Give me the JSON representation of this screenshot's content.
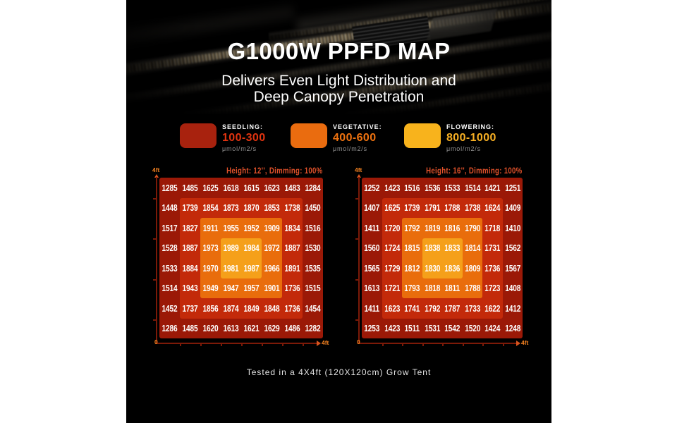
{
  "title": "G1000W PPFD MAP",
  "subtitle_line1": "Delivers Even Light Distribution and",
  "subtitle_line2": "Deep Canopy Penetration",
  "legend": {
    "items": [
      {
        "label": "SEEDLING:",
        "range": "100-300",
        "unit": "μmol/m2/s",
        "swatch": "#a8220e",
        "range_color": "#e23410"
      },
      {
        "label": "VEGETATIVE:",
        "range": "400-600",
        "unit": "μmol/m2/s",
        "swatch": "#ea6c0f",
        "range_color": "#f07310"
      },
      {
        "label": "FLOWERING:",
        "range": "800-1000",
        "unit": "μmol/m2/s",
        "swatch": "#f8b31c",
        "range_color": "#f8b024"
      }
    ]
  },
  "heat_colors": {
    "rings": [
      "#9b1907",
      "#c32a0a",
      "#e96d0c",
      "#f5a01a"
    ]
  },
  "chart_data": [
    {
      "type": "heatmap",
      "title": "Height: 12'', Dimming: 100%",
      "axis": {
        "y_top": "4ft",
        "origin": "0",
        "x_right": "4ft"
      },
      "values": [
        [
          1285,
          1485,
          1625,
          1618,
          1615,
          1623,
          1483,
          1284
        ],
        [
          1448,
          1739,
          1854,
          1873,
          1870,
          1853,
          1738,
          1450
        ],
        [
          1517,
          1827,
          1911,
          1955,
          1952,
          1909,
          1834,
          1516
        ],
        [
          1528,
          1887,
          1973,
          1989,
          1984,
          1972,
          1887,
          1530
        ],
        [
          1533,
          1884,
          1970,
          1981,
          1987,
          1966,
          1891,
          1535
        ],
        [
          1514,
          1943,
          1949,
          1947,
          1957,
          1901,
          1736,
          1515
        ],
        [
          1452,
          1737,
          1856,
          1874,
          1849,
          1848,
          1736,
          1454
        ],
        [
          1286,
          1485,
          1620,
          1613,
          1621,
          1629,
          1486,
          1282
        ]
      ]
    },
    {
      "type": "heatmap",
      "title": "Height: 16'', Dimming: 100%",
      "axis": {
        "y_top": "4ft",
        "origin": "0",
        "x_right": "4ft"
      },
      "values": [
        [
          1252,
          1423,
          1516,
          1536,
          1533,
          1514,
          1421,
          1251
        ],
        [
          1407,
          1625,
          1739,
          1791,
          1788,
          1738,
          1624,
          1409
        ],
        [
          1411,
          1720,
          1792,
          1819,
          1816,
          1790,
          1718,
          1410
        ],
        [
          1560,
          1724,
          1815,
          1838,
          1833,
          1814,
          1731,
          1562
        ],
        [
          1565,
          1729,
          1812,
          1830,
          1836,
          1809,
          1736,
          1567
        ],
        [
          1613,
          1721,
          1793,
          1818,
          1811,
          1788,
          1723,
          1408
        ],
        [
          1411,
          1623,
          1741,
          1792,
          1787,
          1733,
          1622,
          1412
        ],
        [
          1253,
          1423,
          1511,
          1531,
          1542,
          1520,
          1424,
          1248
        ]
      ]
    }
  ],
  "footer": "Tested in a 4X4ft (120X120cm) Grow Tent"
}
